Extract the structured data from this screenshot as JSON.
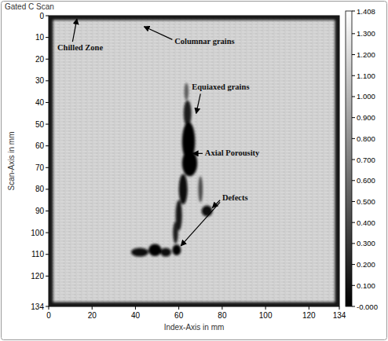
{
  "chart_data": {
    "type": "heatmap",
    "title": "Gated C Scan",
    "x_label": "Index-Axis in mm",
    "y_label": "Scan-Axis in mm",
    "xlim": [
      0,
      134
    ],
    "xticks": [
      0,
      20,
      40,
      60,
      80,
      100,
      120,
      134
    ],
    "ylim": [
      0,
      134
    ],
    "yticks": [
      0,
      10,
      20,
      30,
      40,
      50,
      60,
      70,
      80,
      90,
      100,
      110,
      120,
      134
    ],
    "background": 1.15,
    "regions": [
      {
        "x": 63.5,
        "y": 35,
        "rx": 1,
        "ry": 4,
        "value": 0.5
      },
      {
        "x": 64,
        "y": 45,
        "rx": 1.8,
        "ry": 6,
        "value": 0.15
      },
      {
        "x": 64.5,
        "y": 58,
        "rx": 3,
        "ry": 9,
        "value": 0
      },
      {
        "x": 65,
        "y": 68,
        "rx": 3.5,
        "ry": 6,
        "value": 0
      },
      {
        "x": 62,
        "y": 80,
        "rx": 2,
        "ry": 7,
        "value": 0.05
      },
      {
        "x": 60,
        "y": 92,
        "rx": 1.5,
        "ry": 7,
        "value": 0.1
      },
      {
        "x": 58.5,
        "y": 100,
        "rx": 1.2,
        "ry": 5,
        "value": 0.15
      },
      {
        "x": 70,
        "y": 80,
        "rx": 1,
        "ry": 6,
        "value": 0.4
      },
      {
        "x": 73,
        "y": 90,
        "rx": 2.5,
        "ry": 2.5,
        "value": 0.05
      },
      {
        "x": 42,
        "y": 109,
        "rx": 4,
        "ry": 2,
        "value": 0.05
      },
      {
        "x": 49,
        "y": 108,
        "rx": 3,
        "ry": 2.8,
        "value": 0
      },
      {
        "x": 54,
        "y": 109,
        "rx": 2.5,
        "ry": 2,
        "value": 0.05
      },
      {
        "x": 59,
        "y": 108,
        "rx": 2,
        "ry": 2.5,
        "value": 0
      }
    ],
    "clim": [
      0,
      1.408
    ],
    "cticks": [
      1.408,
      {
        "value": 1.3,
        "label": "1.300"
      },
      {
        "value": 1.2,
        "label": "1.200"
      },
      {
        "value": 1.1,
        "label": "1.100"
      },
      {
        "value": 1.0,
        "label": "1.000"
      },
      {
        "value": 0.9,
        "label": "0.900"
      },
      {
        "value": 0.8,
        "label": "0.800"
      },
      {
        "value": 0.7,
        "label": "0.700"
      },
      {
        "value": 0.6,
        "label": "0.600"
      },
      {
        "value": 0.5,
        "label": "0.500"
      },
      {
        "value": 0.4,
        "label": "0.400"
      },
      {
        "value": 0.3,
        "label": "0.300"
      },
      {
        "value": 0.2,
        "label": "0.200"
      },
      {
        "value": 0.1,
        "label": "0.100"
      },
      {
        "value": 0,
        "label": "-0.000"
      }
    ],
    "annotations": [
      {
        "text": "Chilled Zone"
      },
      {
        "text": "Columnar grains"
      },
      {
        "text": "Equiaxed grains"
      },
      {
        "text": "Axial Porousity"
      },
      {
        "text": "Defects"
      }
    ]
  }
}
